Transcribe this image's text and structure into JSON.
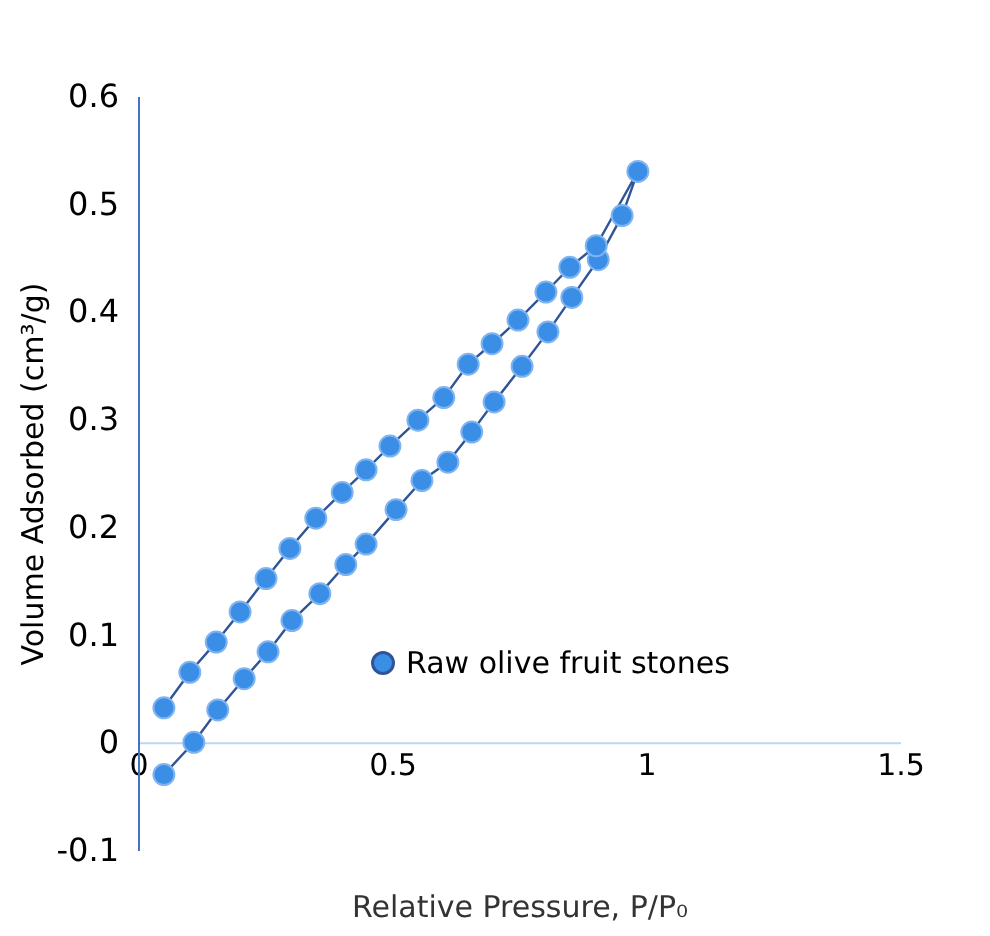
{
  "chart_data": {
    "type": "line",
    "xlabel": "Relative Pressure, P/P₀",
    "ylabel": "Volume Adsorbed (cm³/g)",
    "x": [
      0.051,
      0.11,
      0.157,
      0.209,
      0.256,
      0.303,
      0.358,
      0.409,
      0.449,
      0.508,
      0.559,
      0.61,
      0.657,
      0.701,
      0.756,
      0.807,
      0.854,
      0.906,
      0.953,
      0.984,
      0.902,
      0.85,
      0.803,
      0.748,
      0.697,
      0.65,
      0.602,
      0.551,
      0.496,
      0.449,
      0.402,
      0.35,
      0.299,
      0.252,
      0.201,
      0.154,
      0.102,
      0.051
    ],
    "series": [
      {
        "name": "Raw olive fruit stones",
        "color": "#3a8ee6",
        "values": [
          -0.03,
          0.0,
          0.03,
          0.059,
          0.084,
          0.113,
          0.138,
          0.165,
          0.184,
          0.216,
          0.243,
          0.26,
          0.288,
          0.316,
          0.349,
          0.381,
          0.413,
          0.448,
          0.489,
          0.53,
          0.461,
          0.441,
          0.418,
          0.392,
          0.37,
          0.351,
          0.32,
          0.299,
          0.275,
          0.253,
          0.232,
          0.208,
          0.18,
          0.152,
          0.121,
          0.093,
          0.065,
          0.032
        ]
      }
    ],
    "xlim": [
      0,
      1.5
    ],
    "xticks": [
      0,
      0.5,
      1,
      1.5
    ],
    "ylim": [
      -0.1,
      0.6
    ],
    "yticks": [
      -0.1,
      0,
      0.1,
      0.2,
      0.3,
      0.4,
      0.5,
      0.6
    ],
    "marker": "circle",
    "line_style": "solid",
    "grid": false,
    "legend": "bottom right"
  }
}
